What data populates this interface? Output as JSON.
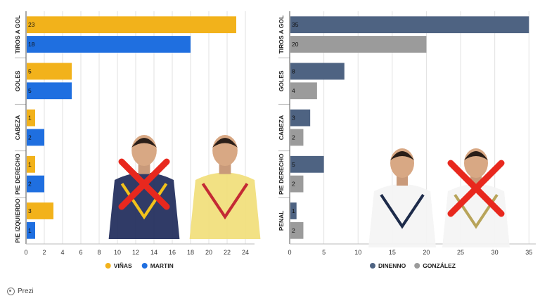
{
  "chart_data": [
    {
      "type": "bar",
      "orientation": "horizontal",
      "categories": [
        "TIROS A GOL",
        "GOLES",
        "CABEZA",
        "PIE DERECHO",
        "PIE IZQUIERDO"
      ],
      "series": [
        {
          "name": "VIÑAS",
          "values": [
            23,
            5,
            1,
            1,
            3
          ],
          "color": "#f2b21b"
        },
        {
          "name": "MARTIN",
          "values": [
            18,
            5,
            2,
            2,
            1
          ],
          "color": "#1f6fe0"
        }
      ],
      "xlim": [
        0,
        25
      ],
      "xticks": [
        0,
        2,
        4,
        6,
        8,
        10,
        12,
        14,
        16,
        18,
        20,
        22,
        24
      ],
      "grid": true,
      "legend_placement": "bottom-center",
      "overlay": "player photos, one crossed out with red X"
    },
    {
      "type": "bar",
      "orientation": "horizontal",
      "categories": [
        "TIROS A GOL",
        "GOLES",
        "CABEZA",
        "PIE DERECHO",
        "PENAL"
      ],
      "series": [
        {
          "name": "DINENNO",
          "values": [
            35,
            8,
            3,
            5,
            1
          ],
          "color": "#4e6382"
        },
        {
          "name": "GONZÁLEZ",
          "values": [
            20,
            4,
            2,
            2,
            2
          ],
          "color": "#9b9b9b"
        }
      ],
      "xlim": [
        0,
        36
      ],
      "xticks": [
        0,
        5,
        10,
        15,
        20,
        25,
        30,
        35
      ],
      "grid": true,
      "legend_placement": "bottom-center",
      "overlay": "player photos, one crossed out with red X"
    }
  ],
  "footer": {
    "brand": "Prezi"
  },
  "icons": {
    "brand_logo": "prezi-logo-icon",
    "cross_mark": "red-x-icon",
    "player_photo": "player-photo-icon"
  }
}
